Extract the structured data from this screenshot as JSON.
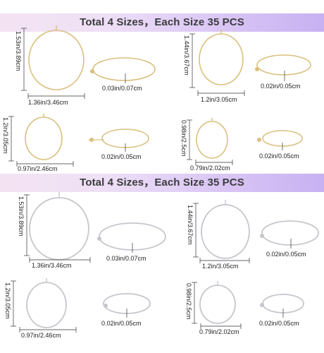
{
  "banner_top": {
    "title": "Total 4 Sizes，Each Size 35 PCS"
  },
  "banner_bottom": {
    "title": "Total 4 Sizes，Each Size 35 PCS"
  },
  "colors": {
    "gold": "#d8bf7a",
    "gold_dark": "#c4a35a",
    "silver": "#c9c9cf",
    "silver_dark": "#a9a9b2"
  },
  "gold": {
    "large": {
      "height": "1.53in/3.89cm",
      "width": "1.36in/3.46cm",
      "wire": "0.03in/0.07cm"
    },
    "medium_large": {
      "height": "1.44in/3.67cm",
      "width": "1.2in/3.05cm",
      "wire": "0.02in/0.05cm"
    },
    "medium": {
      "height": "1.2in/3.05cm",
      "width": "0.97in/2.46cm",
      "wire": "0.02in/0.05cm"
    },
    "small": {
      "height": "0.98in/2.5cm",
      "width": "0.79in/2.02cm",
      "wire": "0.02in/0.05cm"
    }
  },
  "silver": {
    "large": {
      "height": "1.53in/3.89cm",
      "width": "1.36in/3.46cm",
      "wire": "0.03in/0.07cm"
    },
    "medium_large": {
      "height": "1.44in/3.67cm",
      "width": "1.2in/3.05cm",
      "wire": "0.02in/0.05cm"
    },
    "medium": {
      "height": "1.2in/3.05cm",
      "width": "0.97in/2.46cm",
      "wire": "0.02in/0.05cm"
    },
    "small": {
      "height": "0.98in/2.5cm",
      "width": "0.79in/2.02cm",
      "wire": "0.02in/0.05cm"
    }
  }
}
